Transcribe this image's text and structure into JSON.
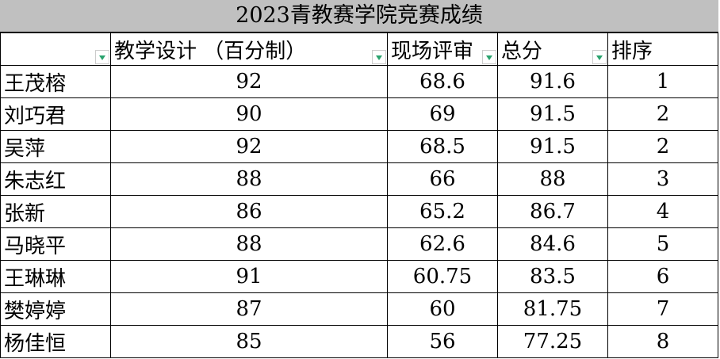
{
  "title": "2023青教赛学院竞赛成绩",
  "headers": [
    "",
    "教学设计 （百分制）",
    "现场评审",
    "总分",
    "排序"
  ],
  "rows": [
    [
      "王茂榕",
      "92",
      "68.6",
      "91.6",
      "1"
    ],
    [
      "刘巧君",
      "90",
      "69",
      "91.5",
      "2"
    ],
    [
      "吴萍",
      "92",
      "68.5",
      "91.5",
      "2"
    ],
    [
      "朱志红",
      "88",
      "66",
      "88",
      "3"
    ],
    [
      "张新",
      "86",
      "65.2",
      "86.7",
      "4"
    ],
    [
      "马晓平",
      "88",
      "62.6",
      "84.6",
      "5"
    ],
    [
      "王琳琳",
      "91",
      "60.75",
      "83.5",
      "6"
    ],
    [
      "樊婷婷",
      "87",
      "60",
      "81.75",
      "7"
    ],
    [
      "杨佳恒",
      "85",
      "56",
      "77.25",
      "8"
    ]
  ],
  "colors": {
    "title_bg": "#c0c0c0",
    "filter_arrow": "#2aa36e"
  }
}
